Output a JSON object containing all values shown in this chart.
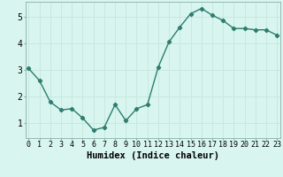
{
  "x": [
    0,
    1,
    2,
    3,
    4,
    5,
    6,
    7,
    8,
    9,
    10,
    11,
    12,
    13,
    14,
    15,
    16,
    17,
    18,
    19,
    20,
    21,
    22,
    23
  ],
  "y": [
    3.05,
    2.6,
    1.8,
    1.5,
    1.55,
    1.2,
    0.75,
    0.85,
    1.7,
    1.1,
    1.55,
    1.7,
    3.1,
    4.05,
    4.6,
    5.1,
    5.3,
    5.05,
    4.85,
    4.55,
    4.55,
    4.5,
    4.5,
    4.3
  ],
  "line_color": "#2e7d6e",
  "marker": "D",
  "marker_size": 2.2,
  "background_color": "#d8f5f0",
  "grid_color": "#c8e8e0",
  "xlabel": "Humidex (Indice chaleur)",
  "xlabel_fontsize": 7.5,
  "tick_fontsize": 6.0,
  "yticks": [
    1,
    2,
    3,
    4,
    5
  ],
  "xticks": [
    0,
    1,
    2,
    3,
    4,
    5,
    6,
    7,
    8,
    9,
    10,
    11,
    12,
    13,
    14,
    15,
    16,
    17,
    18,
    19,
    20,
    21,
    22,
    23
  ],
  "xlim": [
    -0.3,
    23.3
  ],
  "ylim": [
    0.45,
    5.55
  ],
  "line_width": 1.0
}
